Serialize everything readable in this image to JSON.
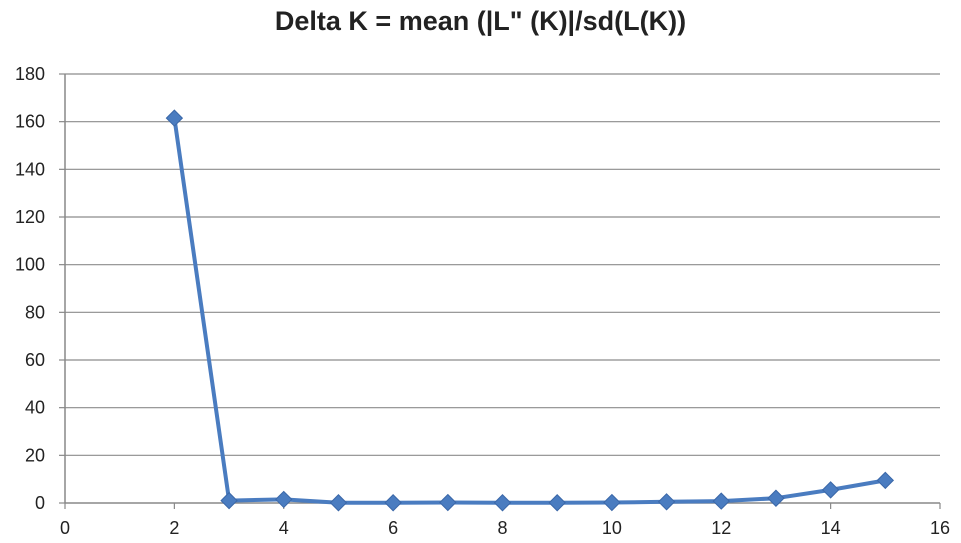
{
  "chart_data": {
    "type": "line",
    "title": "Delta K = mean (|L\" (K)|/sd(L(K))",
    "xlabel": "",
    "ylabel": "",
    "xlim": [
      0,
      16
    ],
    "ylim": [
      0,
      180
    ],
    "xticks": [
      0,
      2,
      4,
      6,
      8,
      10,
      12,
      14,
      16
    ],
    "yticks": [
      0,
      20,
      40,
      60,
      80,
      100,
      120,
      140,
      160,
      180
    ],
    "grid": "horizontal",
    "legend": "none",
    "series": [
      {
        "color": "#4a7cc0",
        "marker": "diamond",
        "x": [
          2,
          3,
          4,
          5,
          6,
          7,
          8,
          9,
          10,
          11,
          12,
          13,
          14,
          15
        ],
        "y": [
          161.5,
          1.0,
          1.5,
          0.1,
          0.1,
          0.2,
          0.1,
          0.1,
          0.2,
          0.5,
          0.8,
          2.0,
          5.5,
          9.5
        ]
      }
    ]
  }
}
